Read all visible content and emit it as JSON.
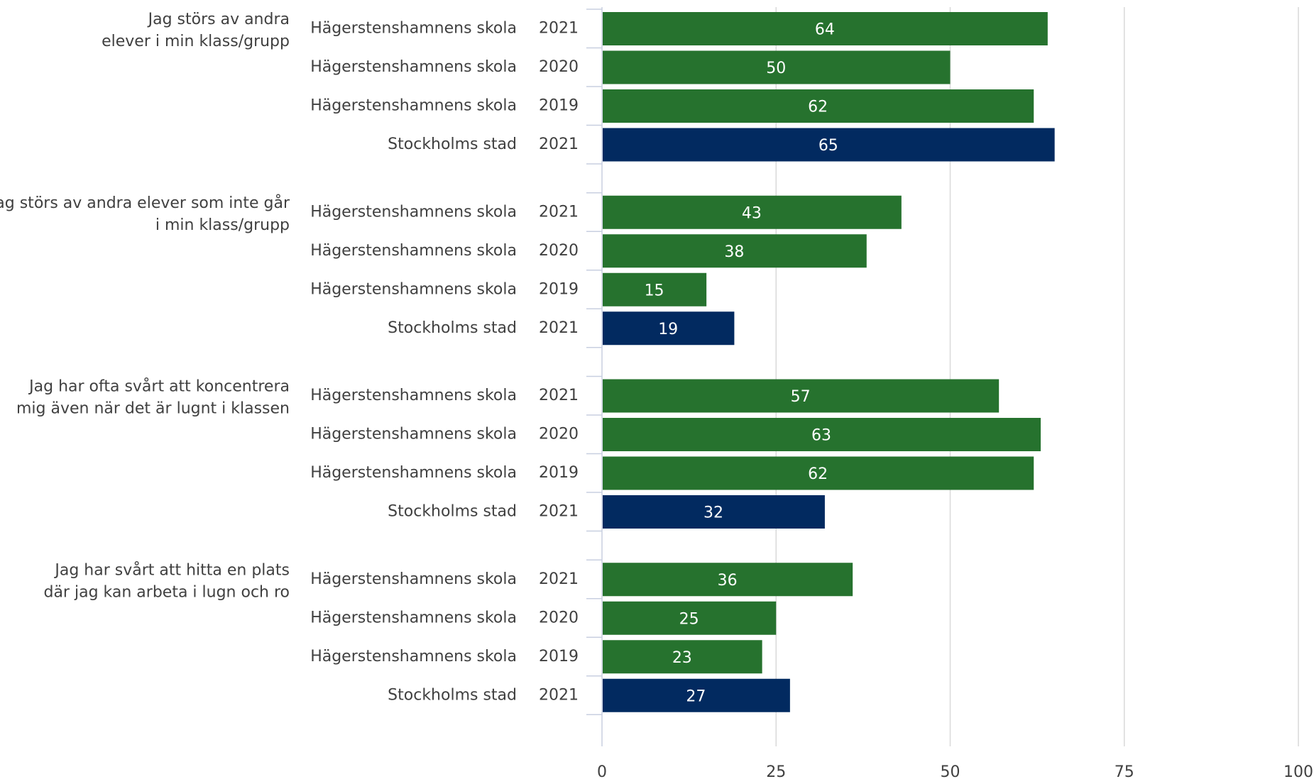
{
  "chart_data": {
    "type": "bar",
    "orientation": "horizontal",
    "xlim": [
      0,
      100
    ],
    "xticks": [
      "0",
      "25",
      "50",
      "75",
      "100"
    ],
    "grid": true,
    "legend": "none",
    "colors": {
      "school": "#26722e",
      "city": "#022a60"
    },
    "groups": [
      {
        "label_lines": [
          "Jag störs av andra",
          "elever i min klass/grupp"
        ],
        "rows": [
          {
            "name": "Hägerstenshamnens skola",
            "year": "2021",
            "value": 64,
            "series": "school"
          },
          {
            "name": "Hägerstenshamnens skola",
            "year": "2020",
            "value": 50,
            "series": "school"
          },
          {
            "name": "Hägerstenshamnens skola",
            "year": "2019",
            "value": 62,
            "series": "school"
          },
          {
            "name": "Stockholms stad",
            "year": "2021",
            "value": 65,
            "series": "city"
          }
        ]
      },
      {
        "label_lines": [
          "Jag störs av andra elever som inte går",
          "i min klass/grupp"
        ],
        "rows": [
          {
            "name": "Hägerstenshamnens skola",
            "year": "2021",
            "value": 43,
            "series": "school"
          },
          {
            "name": "Hägerstenshamnens skola",
            "year": "2020",
            "value": 38,
            "series": "school"
          },
          {
            "name": "Hägerstenshamnens skola",
            "year": "2019",
            "value": 15,
            "series": "school"
          },
          {
            "name": "Stockholms stad",
            "year": "2021",
            "value": 19,
            "series": "city"
          }
        ]
      },
      {
        "label_lines": [
          "Jag har ofta svårt att koncentrera",
          "mig även när det är lugnt i klassen"
        ],
        "rows": [
          {
            "name": "Hägerstenshamnens skola",
            "year": "2021",
            "value": 57,
            "series": "school"
          },
          {
            "name": "Hägerstenshamnens skola",
            "year": "2020",
            "value": 63,
            "series": "school"
          },
          {
            "name": "Hägerstenshamnens skola",
            "year": "2019",
            "value": 62,
            "series": "school"
          },
          {
            "name": "Stockholms stad",
            "year": "2021",
            "value": 32,
            "series": "city"
          }
        ]
      },
      {
        "label_lines": [
          "Jag har svårt att hitta en plats",
          "där jag kan arbeta i lugn och ro"
        ],
        "rows": [
          {
            "name": "Hägerstenshamnens skola",
            "year": "2021",
            "value": 36,
            "series": "school"
          },
          {
            "name": "Hägerstenshamnens skola",
            "year": "2020",
            "value": 25,
            "series": "school"
          },
          {
            "name": "Hägerstenshamnens skola",
            "year": "2019",
            "value": 23,
            "series": "school"
          },
          {
            "name": "Stockholms stad",
            "year": "2021",
            "value": 27,
            "series": "city"
          }
        ]
      }
    ]
  }
}
